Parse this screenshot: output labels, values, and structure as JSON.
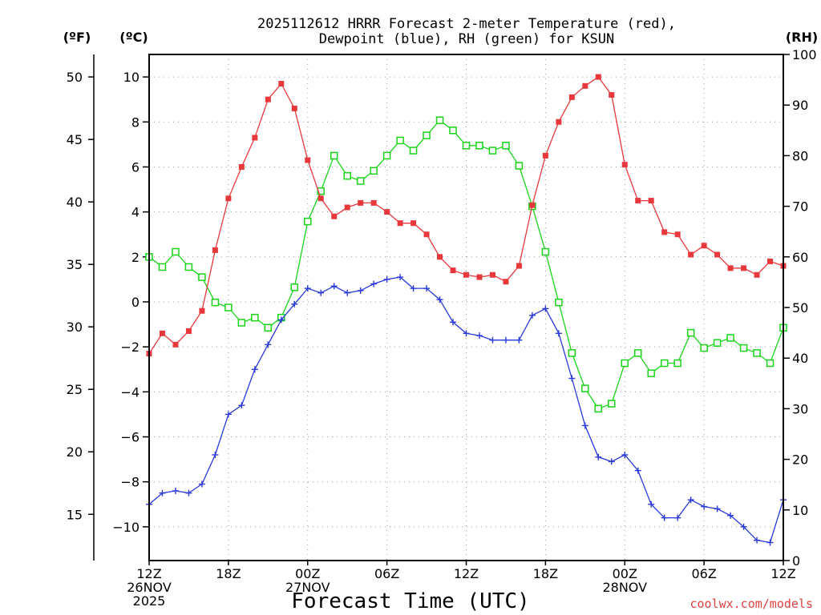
{
  "chart_data": {
    "type": "line",
    "title_lines": [
      "2025112612 HRRR Forecast 2-meter Temperature (red),",
      "Dewpoint (blue), RH (green) for KSUN"
    ],
    "xlabel": "Forecast Time (UTC)",
    "credit": "coolwx.com/models",
    "units": {
      "fahrenheit": "(ºF)",
      "celsius": "(ºC)",
      "rh": "(RH)"
    },
    "x_range_hours": [
      0,
      48
    ],
    "x_ticks": [
      {
        "h": 0,
        "lines": [
          "12Z",
          "26NOV",
          "2025"
        ]
      },
      {
        "h": 6,
        "lines": [
          "18Z"
        ]
      },
      {
        "h": 12,
        "lines": [
          "00Z",
          "27NOV"
        ]
      },
      {
        "h": 18,
        "lines": [
          "06Z"
        ]
      },
      {
        "h": 24,
        "lines": [
          "12Z"
        ]
      },
      {
        "h": 30,
        "lines": [
          "18Z"
        ]
      },
      {
        "h": 36,
        "lines": [
          "00Z",
          "28NOV"
        ]
      },
      {
        "h": 42,
        "lines": [
          "06Z"
        ]
      },
      {
        "h": 48,
        "lines": [
          "12Z"
        ]
      }
    ],
    "celsius_axis": {
      "range": [
        -11.5,
        11.0
      ],
      "ticks": [
        10,
        8,
        6,
        4,
        2,
        0,
        -2,
        -4,
        -6,
        -8,
        -10
      ]
    },
    "fahrenheit_axis": {
      "ticks": [
        50,
        45,
        40,
        35,
        30,
        25,
        20,
        15
      ]
    },
    "rh_axis": {
      "range": [
        0,
        100
      ],
      "ticks": [
        100,
        90,
        80,
        70,
        60,
        50,
        40,
        30,
        20,
        10,
        0
      ]
    },
    "grid": true,
    "series": [
      {
        "name": "Temperature (red)",
        "axis": "celsius",
        "color": "#e8383b",
        "marker": "filled-square",
        "values": [
          -2.3,
          -1.4,
          -1.9,
          -1.3,
          -0.4,
          2.3,
          4.6,
          6.0,
          7.3,
          9.0,
          9.7,
          8.6,
          6.3,
          4.6,
          3.8,
          4.2,
          4.4,
          4.4,
          4.0,
          3.5,
          3.5,
          3.0,
          2.0,
          1.4,
          1.2,
          1.1,
          1.2,
          0.9,
          1.6,
          4.3,
          6.5,
          8.0,
          9.1,
          9.6,
          10.0,
          9.2,
          6.1,
          4.5,
          4.5,
          3.1,
          3.0,
          2.1,
          2.5,
          2.1,
          1.5,
          1.5,
          1.2,
          1.8,
          1.6
        ]
      },
      {
        "name": "Dewpoint (blue)",
        "axis": "celsius",
        "color": "#2a39dc",
        "marker": "plus",
        "values": [
          -9.0,
          -8.5,
          -8.4,
          -8.5,
          -8.1,
          -6.8,
          -5.0,
          -4.6,
          -3.0,
          -1.9,
          -0.8,
          -0.1,
          0.6,
          0.4,
          0.7,
          0.4,
          0.5,
          0.8,
          1.0,
          1.1,
          0.6,
          0.6,
          0.1,
          -0.9,
          -1.4,
          -1.5,
          -1.7,
          -1.7,
          -1.7,
          -0.6,
          -0.3,
          -1.4,
          -3.4,
          -5.5,
          -6.9,
          -7.1,
          -6.8,
          -7.5,
          -9.0,
          -9.6,
          -9.6,
          -8.8,
          -9.1,
          -9.2,
          -9.5,
          -10.0,
          -10.6,
          -10.7,
          -8.8
        ]
      },
      {
        "name": "RH (green)",
        "axis": "rh",
        "color": "#19d419",
        "marker": "open-square",
        "values": [
          60,
          58,
          61,
          58,
          56,
          51,
          50,
          47,
          48,
          46,
          48,
          54,
          67,
          73,
          80,
          76,
          75,
          77,
          80,
          83,
          81,
          84,
          87,
          85,
          82,
          82,
          81,
          82,
          78,
          70,
          61,
          51,
          41,
          34,
          30,
          31,
          39,
          41,
          37,
          39,
          39,
          45,
          42,
          43,
          44,
          42,
          41,
          39,
          46
        ]
      }
    ]
  }
}
